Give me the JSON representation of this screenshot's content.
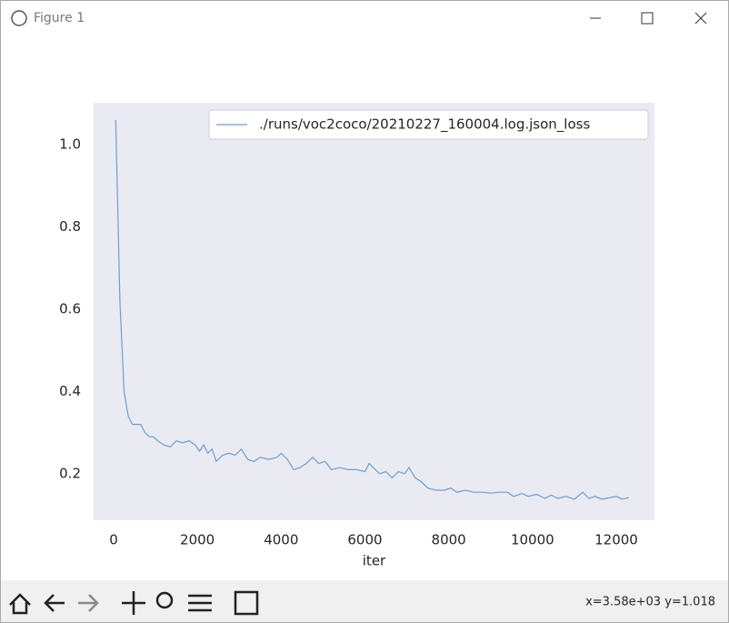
{
  "window": {
    "title": "Figure 1"
  },
  "chart_data": {
    "type": "line",
    "x_label": "iter",
    "x": [
      50,
      150,
      250,
      350,
      450,
      550,
      650,
      750,
      850,
      950,
      1050,
      1200,
      1350,
      1500,
      1650,
      1800,
      1950,
      2050,
      2150,
      2250,
      2350,
      2450,
      2600,
      2750,
      2900,
      3050,
      3200,
      3350,
      3500,
      3700,
      3900,
      4000,
      4150,
      4300,
      4450,
      4600,
      4750,
      4900,
      5050,
      5200,
      5400,
      5600,
      5800,
      6000,
      6100,
      6200,
      6350,
      6500,
      6650,
      6800,
      6950,
      7050,
      7200,
      7350,
      7500,
      7700,
      7900,
      8050,
      8200,
      8400,
      8600,
      8800,
      9000,
      9200,
      9400,
      9550,
      9750,
      9900,
      10100,
      10300,
      10450,
      10600,
      10800,
      11000,
      11200,
      11350,
      11500,
      11650,
      11850,
      12000,
      12150,
      12300
    ],
    "series": [
      {
        "name": "./runs/voc2coco/20210227_160004.log.json_loss",
        "color": "#6a9fd0",
        "values": [
          1.06,
          0.62,
          0.4,
          0.34,
          0.32,
          0.32,
          0.32,
          0.3,
          0.29,
          0.29,
          0.28,
          0.27,
          0.265,
          0.28,
          0.275,
          0.28,
          0.27,
          0.255,
          0.27,
          0.25,
          0.26,
          0.23,
          0.245,
          0.25,
          0.245,
          0.26,
          0.235,
          0.23,
          0.24,
          0.235,
          0.24,
          0.25,
          0.235,
          0.21,
          0.215,
          0.225,
          0.24,
          0.225,
          0.23,
          0.21,
          0.215,
          0.21,
          0.21,
          0.205,
          0.225,
          0.215,
          0.2,
          0.205,
          0.19,
          0.205,
          0.2,
          0.215,
          0.19,
          0.18,
          0.165,
          0.16,
          0.16,
          0.165,
          0.155,
          0.16,
          0.155,
          0.155,
          0.153,
          0.155,
          0.155,
          0.145,
          0.152,
          0.145,
          0.15,
          0.14,
          0.148,
          0.14,
          0.145,
          0.138,
          0.155,
          0.14,
          0.145,
          0.138,
          0.142,
          0.145,
          0.138,
          0.142
        ]
      }
    ],
    "xlim": [
      -477,
      12912
    ],
    "ylim": [
      0.087,
      1.102
    ],
    "xticks": [
      0,
      2000,
      4000,
      6000,
      8000,
      10000,
      12000
    ],
    "yticks": [
      0.2,
      0.4,
      0.6,
      0.8,
      {
        "value": 1,
        "label": "1.0"
      }
    ],
    "grid": false,
    "legend": "upper right",
    "background": "#eaeaf2"
  },
  "status": "x=3.58e+03 y=1.018"
}
